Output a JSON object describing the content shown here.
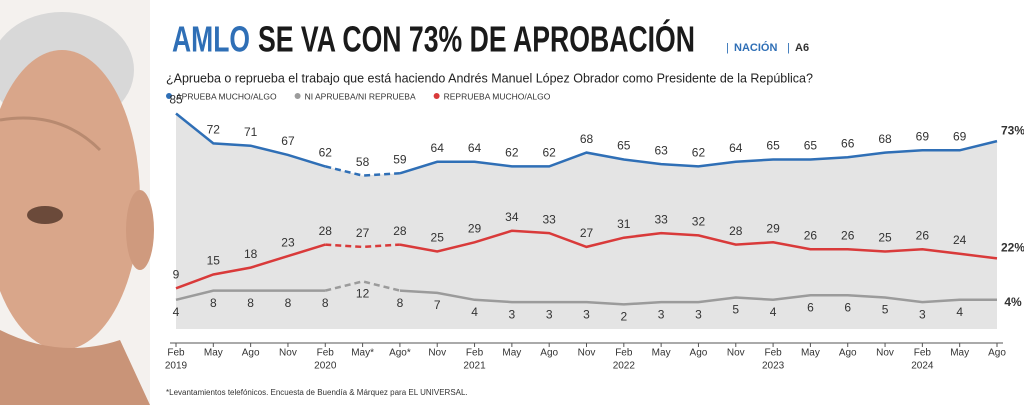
{
  "chart_data": {
    "type": "line",
    "title_highlight": "AMLO",
    "title": "SE VA CON 73% DE APROBACIÓN",
    "section": "NACIÓN",
    "page": "A6",
    "subtitle": "¿Aprueba o reprueba el trabajo que está haciendo Andrés Manuel López Obrador como Presidente de la República?",
    "footnote": "*Levantamientos telefónicos. Encuesta de Buendía & Márquez para EL UNIVERSAL.",
    "categories": [
      "Feb",
      "May",
      "Ago",
      "Nov",
      "Feb",
      "May*",
      "Ago*",
      "Nov",
      "Feb",
      "May",
      "Ago",
      "Nov",
      "Feb",
      "May",
      "Ago",
      "Nov",
      "Feb",
      "May",
      "Ago",
      "Nov",
      "Feb",
      "May",
      "Ago"
    ],
    "years": [
      "2019",
      null,
      null,
      null,
      "2020",
      null,
      null,
      null,
      "2021",
      null,
      null,
      null,
      "2022",
      null,
      null,
      null,
      "2023",
      null,
      null,
      null,
      "2024",
      null,
      null
    ],
    "ylim": [
      0,
      90
    ],
    "dashed_range": [
      4,
      6
    ],
    "fill_under": "#e4e4e4",
    "series": [
      {
        "name": "APRUEBA MUCHO/ALGO",
        "color": "#2f6fb6",
        "label_side": "above",
        "values": [
          85,
          72,
          71,
          67,
          62,
          58,
          59,
          64,
          64,
          62,
          62,
          68,
          65,
          63,
          62,
          64,
          65,
          65,
          66,
          68,
          69,
          69,
          73
        ],
        "value_labels": [
          null,
          null,
          null,
          null,
          null,
          null,
          null,
          null,
          null,
          null,
          null,
          null,
          null,
          null,
          null,
          null,
          null,
          null,
          null,
          null,
          null,
          null,
          "73%"
        ]
      },
      {
        "name": "NI APRUEBA/NI REPRUEBA",
        "color": "#9b9b9b",
        "label_side": "below",
        "values": [
          4,
          8,
          8,
          8,
          8,
          12,
          8,
          7,
          4,
          3,
          3,
          3,
          2,
          3,
          3,
          5,
          4,
          6,
          6,
          5,
          3,
          4,
          4
        ],
        "value_labels": [
          null,
          null,
          null,
          null,
          null,
          null,
          null,
          null,
          null,
          null,
          null,
          null,
          null,
          null,
          null,
          null,
          null,
          null,
          null,
          null,
          null,
          null,
          "4%"
        ]
      },
      {
        "name": "REPRUEBA MUCHO/ALGO",
        "color": "#d93a3a",
        "label_side": "above",
        "values": [
          9,
          15,
          18,
          23,
          28,
          27,
          28,
          25,
          29,
          34,
          33,
          27,
          31,
          33,
          32,
          28,
          29,
          26,
          26,
          25,
          26,
          24,
          22
        ],
        "value_labels": [
          null,
          null,
          null,
          null,
          null,
          null,
          null,
          null,
          null,
          null,
          null,
          null,
          null,
          null,
          null,
          null,
          null,
          null,
          null,
          null,
          null,
          null,
          "22%"
        ]
      }
    ]
  }
}
